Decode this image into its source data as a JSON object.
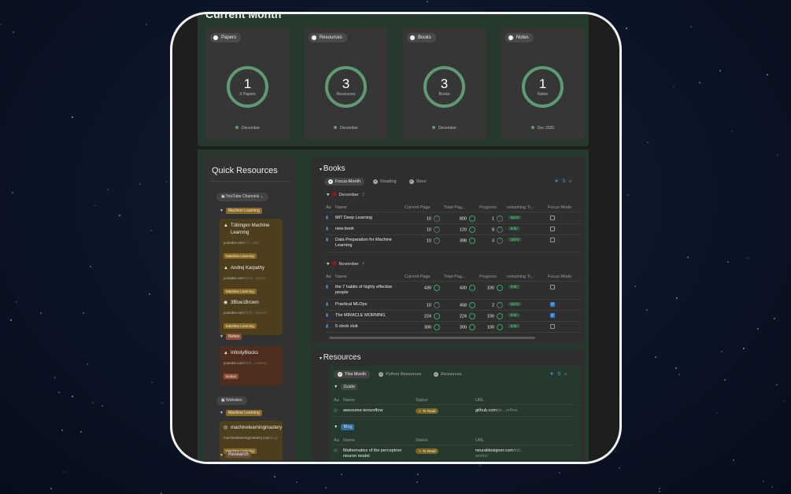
{
  "current_month": {
    "title": "Current Month",
    "cards": [
      {
        "label": "Papers",
        "value": "1",
        "caption": "X Papers",
        "footer": "December"
      },
      {
        "label": "Resources",
        "value": "3",
        "caption": "Resources",
        "footer": "December"
      },
      {
        "label": "Books",
        "value": "3",
        "caption": "Books",
        "footer": "December"
      },
      {
        "label": "Notes",
        "value": "1",
        "caption": "Notes",
        "footer": "Dec 2025"
      }
    ]
  },
  "quick_resources": {
    "title": "Quick Resources",
    "youtube_view": "YouTube Channels",
    "websites_view": "Websites",
    "groups": [
      {
        "label": "Machine Learning"
      },
      {
        "label": "Notion"
      },
      {
        "label": "Machine Learning"
      },
      {
        "label": "Research"
      }
    ],
    "channels": [
      {
        "name": "Tübingen Machine Learning",
        "domain": "youtube.com",
        "path": "/c/T...ylab",
        "tag": "Machine Learning"
      },
      {
        "name": "Andrej Karpathy",
        "domain": "youtube.com",
        "path": "/@An...rpathy",
        "tag": "Machine Learning"
      },
      {
        "name": "3Blue1Brown",
        "domain": "youtube.com",
        "path": "/@3b...1brown",
        "tag": "Machine Learning"
      },
      {
        "name": "InfinityBlocks",
        "domain": "youtube.com",
        "path": "/@In...ocksHQ",
        "tag": "Notion"
      }
    ],
    "sites": [
      {
        "name": "machinelearningmastery",
        "domain": "machinelearningmastery.com",
        "path": "/blog/",
        "tag": "Machine Learning"
      }
    ]
  },
  "books": {
    "title": "Books",
    "tabs": [
      "Focus-Month",
      "Reading",
      "Store"
    ],
    "columns": [
      "Name",
      "Current Page",
      "Total Pag...",
      "Progress",
      "remaining Ti...",
      "Focus Mode"
    ],
    "groups": [
      {
        "label": "December",
        "count": "3",
        "rows": [
          {
            "name": "MIT Deep Learning",
            "current": "10",
            "total": "800",
            "progress": "1",
            "remaining": "48 hr",
            "focus": false
          },
          {
            "name": "new-book",
            "current": "10",
            "total": "120",
            "progress": "8",
            "remaining": "6 hr",
            "focus": false
          },
          {
            "name": "Data Preparation for Machine Learning",
            "current": "10",
            "total": "398",
            "progress": "3",
            "remaining": "19 hr",
            "focus": false
          }
        ]
      },
      {
        "label": "November",
        "count": "4",
        "rows": [
          {
            "name": "the 7 habits of highly effective people",
            "current": "430",
            "total": "430",
            "progress": "100",
            "remaining": "0 hr",
            "focus": false
          },
          {
            "name": "Practical MLOps",
            "current": "10",
            "total": "458",
            "progress": "2",
            "remaining": "22 hr",
            "focus": true
          },
          {
            "name": "The MIRACLE MORNING",
            "current": "224",
            "total": "224",
            "progress": "100",
            "remaining": "0 hr",
            "focus": true
          },
          {
            "name": "5 clock club",
            "current": "300",
            "total": "300",
            "progress": "100",
            "remaining": "0 hr",
            "focus": false
          }
        ]
      }
    ]
  },
  "resources": {
    "title": "Resources",
    "tabs": [
      "This Month",
      "Python Resources",
      "Resources"
    ],
    "columns": [
      "Name",
      "Status",
      "URL"
    ],
    "groups": [
      {
        "label": "Guide",
        "color": "#3f4a40",
        "rows": [
          {
            "name": "awesome-tensorflow",
            "status": "To Read",
            "url": "github.com",
            "url_rest": "/jto...orflow"
          }
        ]
      },
      {
        "label": "Blog",
        "color": "#2f6aa0",
        "rows": [
          {
            "name": "Mathematics of the perceptron neuron model",
            "status": "To Read",
            "url": "neuraldesigner.com",
            "url_rest": "/blo... works/"
          }
        ]
      }
    ]
  }
}
